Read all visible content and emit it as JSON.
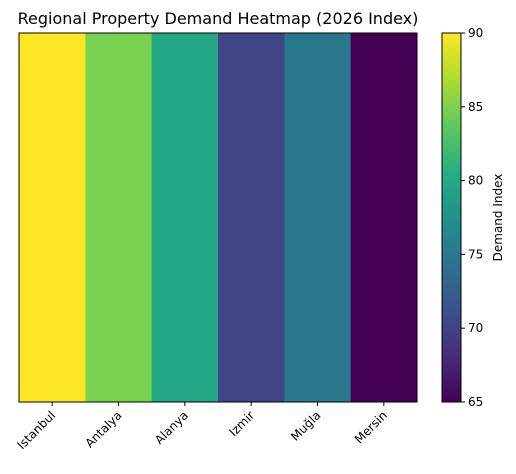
{
  "chart_data": {
    "type": "heatmap",
    "title": "Regional Property Demand Heatmap (2026 Index)",
    "categories": [
      "Istanbul",
      "Antalya",
      "Alanya",
      "Izmir",
      "Muğla",
      "Mersin"
    ],
    "values": [
      90,
      84,
      80,
      70,
      74,
      65
    ],
    "colorbar": {
      "label": "Demand Index",
      "range": [
        65,
        90
      ],
      "ticks": [
        65,
        70,
        75,
        80,
        85,
        90
      ],
      "colormap": "viridis"
    },
    "xlabel": "",
    "ylabel": "",
    "grid": false,
    "colors": [
      "#fde725",
      "#7ad151",
      "#22a884",
      "#414487",
      "#2a788e",
      "#440154"
    ]
  }
}
